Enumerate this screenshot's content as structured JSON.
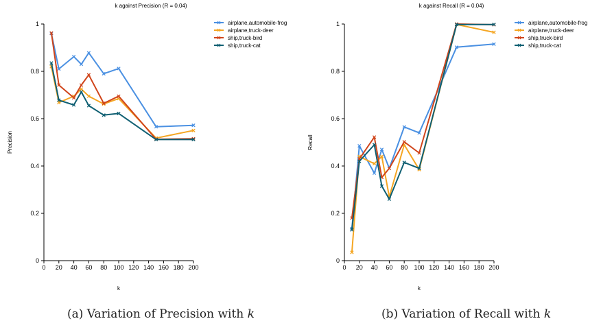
{
  "colors": {
    "airplane_automobile_frog": "#4a90e2",
    "airplane_truck_deer": "#f5a623",
    "ship_truck_bird": "#d0451b",
    "ship_truck_cat": "#0f5f72"
  },
  "captions": {
    "a": {
      "prefix": "(a) Variation of Precision with",
      "var": "k"
    },
    "b": {
      "prefix": "(b) Variation of Recall with",
      "var": "k"
    }
  },
  "chart_data": [
    {
      "type": "line",
      "title": "k against Precision (R = 0.04)",
      "xlabel": "k",
      "ylabel": "Precision",
      "xlim": [
        0,
        200
      ],
      "ylim": [
        0,
        1
      ],
      "xticks": [
        0,
        20,
        40,
        60,
        80,
        100,
        120,
        140,
        160,
        180,
        200
      ],
      "yticks": [
        0,
        0.2,
        0.4,
        0.6,
        0.8,
        1
      ],
      "ytick_labels": [
        "0",
        "0.2",
        "0.4",
        "0.6",
        "0.8",
        "1"
      ],
      "grid": false,
      "legend": "top-right",
      "x": [
        10,
        20,
        40,
        50,
        60,
        80,
        100,
        150,
        200
      ],
      "series": [
        {
          "name": "airplane,automobile-frog",
          "color_key": "airplane_automobile_frog",
          "values": [
            0.96,
            0.81,
            0.862,
            0.83,
            0.878,
            0.79,
            0.812,
            0.566,
            0.572
          ]
        },
        {
          "name": "airplane,truck-deer",
          "color_key": "airplane_truck_deer",
          "values": [
            0.82,
            0.668,
            0.695,
            0.725,
            0.695,
            0.662,
            0.685,
            0.518,
            0.55
          ]
        },
        {
          "name": "ship,truck-bird",
          "color_key": "ship_truck_bird",
          "values": [
            0.962,
            0.742,
            0.688,
            0.742,
            0.785,
            0.665,
            0.695,
            0.513,
            0.515
          ]
        },
        {
          "name": "ship,truck-cat",
          "color_key": "ship_truck_cat",
          "values": [
            0.835,
            0.678,
            0.658,
            0.713,
            0.655,
            0.615,
            0.622,
            0.512,
            0.512
          ]
        }
      ]
    },
    {
      "type": "line",
      "title": "k against Recall (R = 0.04)",
      "xlabel": "k",
      "ylabel": "Recall",
      "xlim": [
        0,
        200
      ],
      "ylim": [
        0,
        1
      ],
      "xticks": [
        0,
        20,
        40,
        60,
        80,
        100,
        120,
        140,
        160,
        180,
        200
      ],
      "yticks": [
        0,
        0.2,
        0.4,
        0.6,
        0.8,
        1
      ],
      "ytick_labels": [
        "0",
        "0.2",
        "0.4",
        "0.6",
        "0.8",
        "1"
      ],
      "grid": false,
      "legend": "top-right",
      "x": [
        10,
        20,
        40,
        50,
        60,
        80,
        100,
        150,
        200
      ],
      "series": [
        {
          "name": "airplane,automobile-frog",
          "color_key": "airplane_automobile_frog",
          "values": [
            0.135,
            0.485,
            0.37,
            0.47,
            0.39,
            0.565,
            0.54,
            0.902,
            0.915
          ]
        },
        {
          "name": "airplane,truck-deer",
          "color_key": "airplane_truck_deer",
          "values": [
            0.035,
            0.44,
            0.41,
            0.44,
            0.27,
            0.49,
            0.385,
            0.998,
            0.965
          ]
        },
        {
          "name": "ship,truck-bird",
          "color_key": "ship_truck_bird",
          "values": [
            0.18,
            0.43,
            0.522,
            0.352,
            0.39,
            0.502,
            0.455,
            1.0,
            0.997
          ]
        },
        {
          "name": "ship,truck-cat",
          "color_key": "ship_truck_cat",
          "values": [
            0.13,
            0.42,
            0.49,
            0.315,
            0.26,
            0.415,
            0.39,
            0.998,
            0.998
          ]
        }
      ]
    }
  ]
}
